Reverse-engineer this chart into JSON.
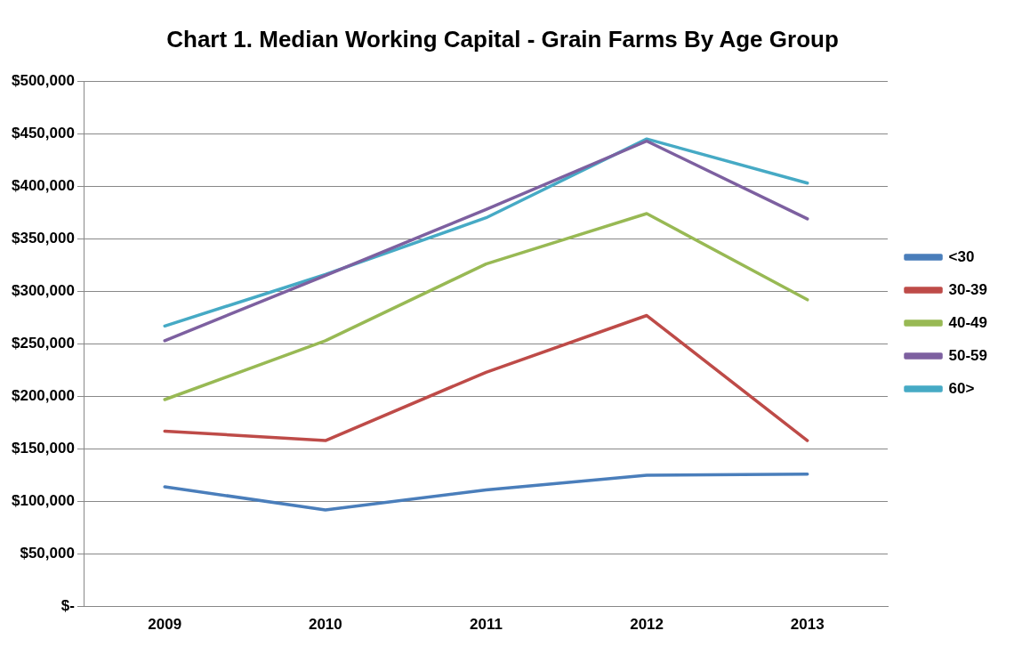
{
  "chart_data": {
    "type": "line",
    "title": "Chart 1. Median Working Capital - Grain Farms By Age Group",
    "categories": [
      "2009",
      "2010",
      "2011",
      "2012",
      "2013"
    ],
    "series": [
      {
        "name": "<30",
        "color": "#4a7ebb",
        "values": [
          114000,
          92000,
          111000,
          125000,
          126000
        ]
      },
      {
        "name": "30-39",
        "color": "#be4b48",
        "values": [
          167000,
          158000,
          223000,
          277000,
          158000
        ]
      },
      {
        "name": "40-49",
        "color": "#98b954",
        "values": [
          197000,
          253000,
          326000,
          374000,
          292000
        ]
      },
      {
        "name": "50-59",
        "color": "#7d60a0",
        "values": [
          253000,
          315000,
          378000,
          443000,
          369000
        ]
      },
      {
        "name": "60>",
        "color": "#46aac5",
        "values": [
          267000,
          316000,
          370000,
          445000,
          403000
        ]
      }
    ],
    "ylim": [
      0,
      500000
    ],
    "yticks": [
      {
        "value": 0,
        "label": "$-"
      },
      {
        "value": 50000,
        "label": "$50,000"
      },
      {
        "value": 100000,
        "label": "$100,000"
      },
      {
        "value": 150000,
        "label": "$150,000"
      },
      {
        "value": 200000,
        "label": "$200,000"
      },
      {
        "value": 250000,
        "label": "$250,000"
      },
      {
        "value": 300000,
        "label": "$300,000"
      },
      {
        "value": 350000,
        "label": "$350,000"
      },
      {
        "value": 400000,
        "label": "$400,000"
      },
      {
        "value": 450000,
        "label": "$450,000"
      },
      {
        "value": 500000,
        "label": "$500,000"
      }
    ],
    "grid": "y",
    "legend": "right",
    "marker": "none",
    "line_style": "solid"
  }
}
